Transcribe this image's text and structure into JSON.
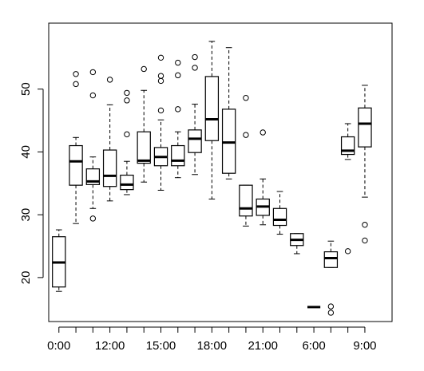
{
  "chart_data": {
    "type": "box",
    "title": "",
    "xlabel": "",
    "ylabel": "",
    "ylim": [
      13,
      60.5
    ],
    "grid": false,
    "y_ticks": [
      20,
      30,
      40,
      50
    ],
    "x_tick_labels_shown": [
      {
        "index": 1,
        "label": "0:00"
      },
      {
        "index": 4,
        "label": "12:00"
      },
      {
        "index": 7,
        "label": "15:00"
      },
      {
        "index": 10,
        "label": "18:00"
      },
      {
        "index": 13,
        "label": "21:00"
      },
      {
        "index": 16,
        "label": "6:00"
      },
      {
        "index": 19,
        "label": "9:00"
      }
    ],
    "boxes": [
      {
        "index": 1,
        "min": 17.8,
        "q1": 18.5,
        "median": 22.4,
        "q3": 26.5,
        "max": 27.6,
        "outliers": []
      },
      {
        "index": 2,
        "min": 28.6,
        "q1": 34.7,
        "median": 38.5,
        "q3": 41.0,
        "max": 42.3,
        "outliers": [
          50.8,
          52.4
        ]
      },
      {
        "index": 3,
        "min": 31.0,
        "q1": 34.8,
        "median": 35.3,
        "q3": 37.3,
        "max": 39.2,
        "outliers": [
          29.4,
          49.0,
          52.7
        ]
      },
      {
        "index": 4,
        "min": 32.2,
        "q1": 34.5,
        "median": 36.2,
        "q3": 40.3,
        "max": 47.5,
        "outliers": [
          51.5
        ]
      },
      {
        "index": 5,
        "min": 33.2,
        "q1": 34.0,
        "median": 34.8,
        "q3": 36.3,
        "max": 38.5,
        "outliers": [
          42.8,
          48.2,
          49.4
        ]
      },
      {
        "index": 6,
        "min": 35.2,
        "q1": 38.2,
        "median": 38.6,
        "q3": 43.2,
        "max": 49.8,
        "outliers": [
          53.2
        ]
      },
      {
        "index": 7,
        "min": 33.9,
        "q1": 37.8,
        "median": 39.2,
        "q3": 40.7,
        "max": 45.1,
        "outliers": [
          46.6,
          51.3,
          52.1,
          55.0
        ]
      },
      {
        "index": 8,
        "min": 35.9,
        "q1": 37.8,
        "median": 38.6,
        "q3": 41.0,
        "max": 43.2,
        "outliers": [
          46.8,
          52.2,
          54.2
        ]
      },
      {
        "index": 9,
        "min": 36.4,
        "q1": 39.9,
        "median": 42.1,
        "q3": 43.5,
        "max": 47.6,
        "outliers": [
          53.4,
          55.1
        ]
      },
      {
        "index": 10,
        "min": 32.5,
        "q1": 41.8,
        "median": 45.2,
        "q3": 52.0,
        "max": 57.6,
        "outliers": []
      },
      {
        "index": 11,
        "min": 35.7,
        "q1": 36.6,
        "median": 41.5,
        "q3": 46.8,
        "max": 56.6,
        "outliers": []
      },
      {
        "index": 12,
        "min": 28.2,
        "q1": 29.8,
        "median": 31.0,
        "q3": 34.7,
        "max": 34.7,
        "outliers": [
          42.7,
          48.6
        ]
      },
      {
        "index": 13,
        "min": 28.4,
        "q1": 29.9,
        "median": 31.3,
        "q3": 32.5,
        "max": 35.7,
        "outliers": [
          43.1
        ]
      },
      {
        "index": 14,
        "min": 26.9,
        "q1": 28.3,
        "median": 29.2,
        "q3": 31.0,
        "max": 33.7,
        "outliers": []
      },
      {
        "index": 15,
        "min": 23.8,
        "q1": 25.1,
        "median": 26.0,
        "q3": 27.0,
        "max": 27.0,
        "outliers": []
      },
      {
        "index": 16,
        "min": 15.3,
        "q1": 15.3,
        "median": 15.3,
        "q3": 15.3,
        "max": 15.3,
        "outliers": []
      },
      {
        "index": 17,
        "min": 21.6,
        "q1": 21.6,
        "median": 23.1,
        "q3": 24.1,
        "max": 25.8,
        "outliers": [
          14.4,
          15.4
        ]
      },
      {
        "index": 18,
        "min": 38.8,
        "q1": 39.6,
        "median": 40.2,
        "q3": 42.4,
        "max": 44.5,
        "outliers": [
          24.2
        ]
      },
      {
        "index": 19,
        "min": 32.8,
        "q1": 40.8,
        "median": 44.5,
        "q3": 47.0,
        "max": 50.6,
        "outliers": [
          25.9,
          28.4
        ]
      }
    ],
    "colors": {
      "stroke": "#000000",
      "background": "#ffffff"
    }
  }
}
